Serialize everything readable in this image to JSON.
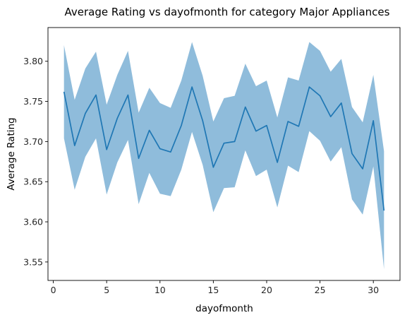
{
  "chart_data": {
    "type": "line",
    "title": "Average Rating vs dayofmonth for category Major Appliances",
    "xlabel": "dayofmonth",
    "ylabel": "Average Rating",
    "xlim": [
      -0.5,
      32.5
    ],
    "ylim": [
      3.527,
      3.842
    ],
    "xticks": [
      0,
      5,
      10,
      15,
      20,
      25,
      30
    ],
    "yticks": [
      3.55,
      3.6,
      3.65,
      3.7,
      3.75,
      3.8
    ],
    "ytick_labels": [
      "3.55",
      "3.60",
      "3.65",
      "3.70",
      "3.75",
      "3.80"
    ],
    "grid": false,
    "series": [
      {
        "color": "#1f77b4",
        "band_color": "#8fbcdb",
        "x": [
          1,
          2,
          3,
          4,
          5,
          6,
          7,
          8,
          9,
          10,
          11,
          12,
          13,
          14,
          15,
          16,
          17,
          18,
          19,
          20,
          21,
          22,
          23,
          24,
          25,
          26,
          27,
          28,
          29,
          30,
          31
        ],
        "values": [
          3.762,
          3.695,
          3.735,
          3.758,
          3.69,
          3.729,
          3.758,
          3.679,
          3.714,
          3.691,
          3.687,
          3.72,
          3.768,
          3.726,
          3.668,
          3.698,
          3.7,
          3.743,
          3.713,
          3.72,
          3.674,
          3.725,
          3.719,
          3.768,
          3.757,
          3.731,
          3.748,
          3.685,
          3.666,
          3.726,
          3.614
        ],
        "upper": [
          3.82,
          3.752,
          3.791,
          3.812,
          3.746,
          3.783,
          3.813,
          3.736,
          3.767,
          3.748,
          3.742,
          3.776,
          3.824,
          3.782,
          3.725,
          3.754,
          3.757,
          3.797,
          3.769,
          3.776,
          3.73,
          3.78,
          3.776,
          3.824,
          3.813,
          3.787,
          3.803,
          3.743,
          3.724,
          3.783,
          3.688
        ],
        "lower": [
          3.704,
          3.64,
          3.681,
          3.704,
          3.634,
          3.674,
          3.702,
          3.622,
          3.661,
          3.635,
          3.632,
          3.665,
          3.712,
          3.671,
          3.612,
          3.642,
          3.643,
          3.689,
          3.657,
          3.665,
          3.618,
          3.67,
          3.662,
          3.713,
          3.701,
          3.675,
          3.693,
          3.628,
          3.609,
          3.669,
          3.541
        ]
      }
    ]
  }
}
